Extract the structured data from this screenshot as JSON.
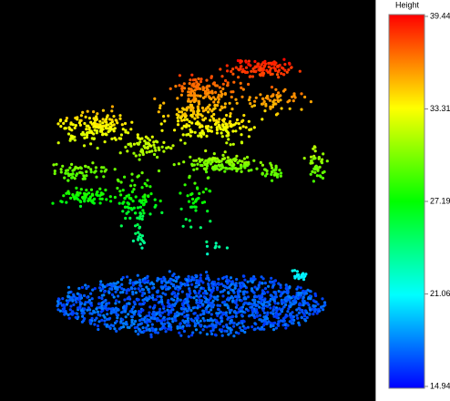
{
  "colorbar": {
    "title": "Height",
    "ticks": [
      39.44,
      33.31,
      27.19,
      21.06,
      14.94
    ],
    "lim": [
      14.94,
      39.44
    ]
  }
}
